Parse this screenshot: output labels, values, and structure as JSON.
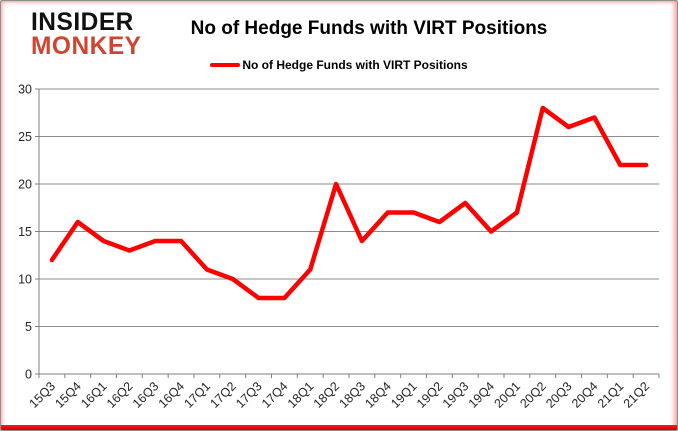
{
  "logo": {
    "line1": "INSIDER",
    "line2": "MONKEY"
  },
  "header": {
    "title": "No of Hedge Funds with VIRT Positions"
  },
  "legend": {
    "label": "No of Hedge Funds with VIRT Positions",
    "marker_color": "#FF0000"
  },
  "colors": {
    "line_red": "#FF0000",
    "logo_red": "#CE4631",
    "logo_black": "#111111",
    "gridline_gray": "#8C8C8C",
    "axis_gray": "#808080",
    "tick_text": "#262626"
  },
  "chart_data": {
    "type": "line",
    "title": "No of Hedge Funds with VIRT Positions",
    "categories": [
      "15Q3",
      "15Q4",
      "16Q1",
      "16Q2",
      "16Q3",
      "16Q4",
      "17Q1",
      "17Q2",
      "17Q3",
      "17Q4",
      "18Q1",
      "18Q2",
      "18Q3",
      "18Q4",
      "19Q1",
      "19Q2",
      "19Q3",
      "19Q4",
      "20Q1",
      "20Q2",
      "20Q3",
      "20Q4",
      "21Q1",
      "21Q2"
    ],
    "series": [
      {
        "name": "No of Hedge Funds with VIRT Positions",
        "color": "#FF0000",
        "values": [
          12,
          16,
          14,
          13,
          14,
          14,
          11,
          10,
          8,
          8,
          11,
          20,
          14,
          17,
          17,
          16,
          18,
          15,
          17,
          28,
          26,
          27,
          22,
          22
        ]
      }
    ],
    "xlabel": "",
    "ylabel": "",
    "ylim": [
      0,
      30
    ],
    "ytick_step": 5,
    "yticks": [
      0,
      5,
      10,
      15,
      20,
      25,
      30
    ],
    "grid": "horizontal",
    "legend_position": "top",
    "x_label_rotation_deg": -45
  }
}
